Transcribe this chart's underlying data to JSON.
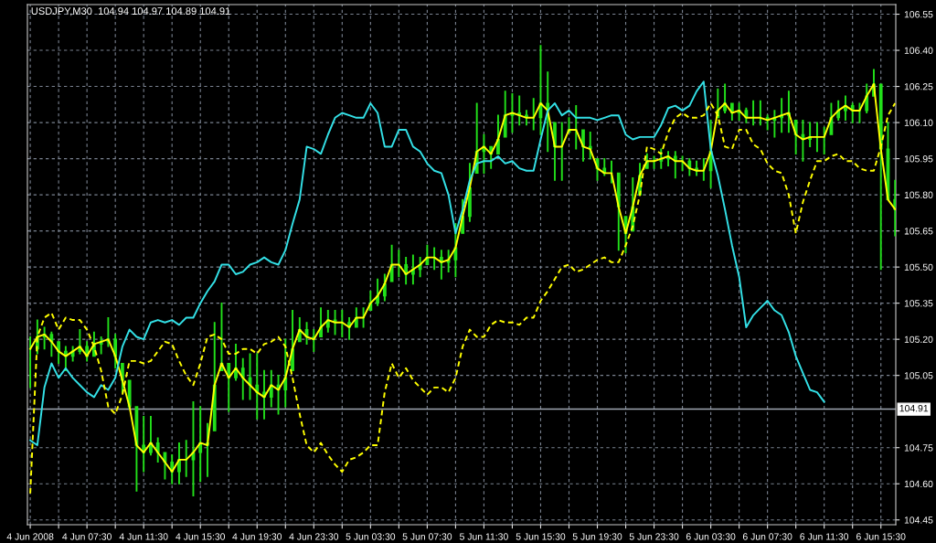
{
  "chart_data": {
    "type": "candlestick",
    "title": "USDJPY,M30  104.94 104.97 104.89 104.91",
    "color": "#22e01a",
    "grid": true,
    "x": [
      "2008-06-04T03:30",
      "2008-06-04T04:00",
      "2008-06-04T04:30",
      "2008-06-04T05:00",
      "2008-06-04T05:30",
      "2008-06-04T06:00",
      "2008-06-04T06:30",
      "2008-06-04T07:00",
      "2008-06-04T07:30",
      "2008-06-04T08:00",
      "2008-06-04T08:30",
      "2008-06-04T09:00",
      "2008-06-04T09:30",
      "2008-06-04T10:00",
      "2008-06-04T10:30",
      "2008-06-04T11:00",
      "2008-06-04T11:30",
      "2008-06-04T12:00",
      "2008-06-04T12:30",
      "2008-06-04T13:00",
      "2008-06-04T13:30",
      "2008-06-04T14:00",
      "2008-06-04T14:30",
      "2008-06-04T15:00",
      "2008-06-04T15:30",
      "2008-06-04T16:00",
      "2008-06-04T16:30",
      "2008-06-04T17:00",
      "2008-06-04T17:30",
      "2008-06-04T18:00",
      "2008-06-04T18:30",
      "2008-06-04T19:00",
      "2008-06-04T19:30",
      "2008-06-04T20:00",
      "2008-06-04T20:30",
      "2008-06-04T21:00",
      "2008-06-04T21:30",
      "2008-06-04T22:00",
      "2008-06-04T22:30",
      "2008-06-04T23:00",
      "2008-06-04T23:30",
      "2008-06-05T00:00",
      "2008-06-05T00:30",
      "2008-06-05T01:00",
      "2008-06-05T01:30",
      "2008-06-05T02:00",
      "2008-06-05T02:30",
      "2008-06-05T03:00",
      "2008-06-05T03:30",
      "2008-06-05T04:00",
      "2008-06-05T04:30",
      "2008-06-05T05:00",
      "2008-06-05T05:30",
      "2008-06-05T06:00",
      "2008-06-05T06:30",
      "2008-06-05T07:00",
      "2008-06-05T07:30",
      "2008-06-05T08:00",
      "2008-06-05T08:30",
      "2008-06-05T09:00",
      "2008-06-05T09:30",
      "2008-06-05T10:00",
      "2008-06-05T10:30",
      "2008-06-05T11:00",
      "2008-06-05T11:30",
      "2008-06-05T12:00",
      "2008-06-05T12:30",
      "2008-06-05T13:00",
      "2008-06-05T13:30",
      "2008-06-05T14:00",
      "2008-06-05T14:30",
      "2008-06-05T15:00",
      "2008-06-05T15:30",
      "2008-06-05T16:00",
      "2008-06-05T16:30",
      "2008-06-05T17:00",
      "2008-06-05T17:30",
      "2008-06-05T18:00",
      "2008-06-05T18:30",
      "2008-06-05T19:00",
      "2008-06-05T19:30",
      "2008-06-05T20:00",
      "2008-06-05T20:30",
      "2008-06-05T21:00",
      "2008-06-05T21:30",
      "2008-06-05T22:00",
      "2008-06-05T22:30",
      "2008-06-05T23:00",
      "2008-06-05T23:30",
      "2008-06-06T00:00",
      "2008-06-06T00:30",
      "2008-06-06T01:00",
      "2008-06-06T01:30",
      "2008-06-06T02:00",
      "2008-06-06T02:30",
      "2008-06-06T03:00",
      "2008-06-06T03:30",
      "2008-06-06T04:00",
      "2008-06-06T04:30",
      "2008-06-06T05:00",
      "2008-06-06T05:30",
      "2008-06-06T06:00",
      "2008-06-06T06:30",
      "2008-06-06T07:00",
      "2008-06-06T07:30",
      "2008-06-06T08:00",
      "2008-06-06T08:30",
      "2008-06-06T09:00",
      "2008-06-06T09:30",
      "2008-06-06T10:00",
      "2008-06-06T10:30",
      "2008-06-06T11:00",
      "2008-06-06T11:30",
      "2008-06-06T12:00",
      "2008-06-06T12:30",
      "2008-06-06T13:00",
      "2008-06-06T13:30",
      "2008-06-06T14:00",
      "2008-06-06T14:30",
      "2008-06-06T15:00",
      "2008-06-06T15:30",
      "2008-06-06T16:00",
      "2008-06-06T16:30"
    ],
    "xlim": [
      "2008-06-04T03:18",
      "2008-06-06T16:33"
    ],
    "ylim": [
      104.43,
      106.59
    ],
    "xticks": [
      {
        "value": "2008-06-04T03:30",
        "label": "4 Jun 2008"
      },
      {
        "value": "2008-06-04T05:30",
        "label": null
      },
      {
        "value": "2008-06-04T07:30",
        "label": "4 Jun 07:30"
      },
      {
        "value": "2008-06-04T09:30",
        "label": null
      },
      {
        "value": "2008-06-04T11:30",
        "label": "4 Jun 11:30"
      },
      {
        "value": "2008-06-04T13:30",
        "label": null
      },
      {
        "value": "2008-06-04T15:30",
        "label": "4 Jun 15:30"
      },
      {
        "value": "2008-06-04T17:30",
        "label": null
      },
      {
        "value": "2008-06-04T19:30",
        "label": "4 Jun 19:30"
      },
      {
        "value": "2008-06-04T21:30",
        "label": null
      },
      {
        "value": "2008-06-04T23:30",
        "label": "4 Jun 23:30"
      },
      {
        "value": "2008-06-05T01:30",
        "label": null
      },
      {
        "value": "2008-06-05T03:30",
        "label": "5 Jun 03:30"
      },
      {
        "value": "2008-06-05T05:30",
        "label": null
      },
      {
        "value": "2008-06-05T07:30",
        "label": "5 Jun 07:30"
      },
      {
        "value": "2008-06-05T09:30",
        "label": null
      },
      {
        "value": "2008-06-05T11:30",
        "label": "5 Jun 11:30"
      },
      {
        "value": "2008-06-05T13:30",
        "label": null
      },
      {
        "value": "2008-06-05T15:30",
        "label": "5 Jun 15:30"
      },
      {
        "value": "2008-06-05T17:30",
        "label": null
      },
      {
        "value": "2008-06-05T19:30",
        "label": "5 Jun 19:30"
      },
      {
        "value": "2008-06-05T21:30",
        "label": null
      },
      {
        "value": "2008-06-05T23:30",
        "label": "5 Jun 23:30"
      },
      {
        "value": "2008-06-06T01:30",
        "label": null
      },
      {
        "value": "2008-06-06T03:30",
        "label": "6 Jun 03:30"
      },
      {
        "value": "2008-06-06T05:30",
        "label": null
      },
      {
        "value": "2008-06-06T07:30",
        "label": "6 Jun 07:30"
      },
      {
        "value": "2008-06-06T09:30",
        "label": null
      },
      {
        "value": "2008-06-06T11:30",
        "label": "6 Jun 11:30"
      },
      {
        "value": "2008-06-06T13:30",
        "label": null
      },
      {
        "value": "2008-06-06T15:30",
        "label": "6 Jun 15:30"
      }
    ],
    "yticks": [
      {
        "value": 104.45,
        "label": "104.45"
      },
      {
        "value": 104.6,
        "label": "104.60"
      },
      {
        "value": 104.75,
        "label": "104.75"
      },
      {
        "value": 105.05,
        "label": "105.05"
      },
      {
        "value": 105.2,
        "label": "105.20"
      },
      {
        "value": 105.35,
        "label": "105.35"
      },
      {
        "value": 105.5,
        "label": "105.50"
      },
      {
        "value": 105.65,
        "label": "105.65"
      },
      {
        "value": 105.8,
        "label": "105.80"
      },
      {
        "value": 105.95,
        "label": "105.95"
      },
      {
        "value": 106.1,
        "label": "106.10"
      },
      {
        "value": 106.25,
        "label": "106.25"
      },
      {
        "value": 106.4,
        "label": "106.40"
      },
      {
        "value": 106.55,
        "label": "106.55"
      }
    ],
    "ref_lines": [
      {
        "axis": "y",
        "value": 104.91,
        "label": "104.91",
        "color": "#a0a8b4"
      }
    ],
    "ohlc": [
      [
        105.16,
        105.21,
        105.0,
        105.16
      ],
      [
        105.16,
        105.28,
        105.14,
        105.21
      ],
      [
        105.21,
        105.25,
        105.16,
        105.22
      ],
      [
        105.22,
        105.23,
        105.13,
        105.19
      ],
      [
        105.19,
        105.19,
        105.1,
        105.15
      ],
      [
        105.15,
        105.17,
        105.07,
        105.13
      ],
      [
        105.13,
        105.17,
        105.11,
        105.15
      ],
      [
        105.15,
        105.24,
        105.14,
        105.17
      ],
      [
        105.17,
        105.19,
        105.11,
        105.13
      ],
      [
        105.13,
        105.23,
        105.13,
        105.18
      ],
      [
        105.18,
        105.21,
        105.14,
        105.19
      ],
      [
        105.19,
        105.29,
        105.17,
        105.2
      ],
      [
        105.2,
        105.22,
        105.08,
        105.13
      ],
      [
        105.1,
        105.1,
        104.98,
        105.03
      ],
      [
        105.03,
        105.03,
        104.91,
        104.92
      ],
      [
        104.92,
        104.92,
        104.57,
        104.76
      ],
      [
        104.76,
        104.88,
        104.65,
        104.73
      ],
      [
        104.73,
        104.88,
        104.72,
        104.77
      ],
      [
        104.77,
        104.79,
        104.69,
        104.73
      ],
      [
        104.73,
        104.73,
        104.62,
        104.69
      ],
      [
        104.69,
        104.72,
        104.6,
        104.65
      ],
      [
        104.65,
        104.77,
        104.6,
        104.7
      ],
      [
        104.7,
        104.78,
        104.63,
        104.7
      ],
      [
        104.7,
        104.94,
        104.55,
        104.73
      ],
      [
        104.73,
        104.92,
        104.61,
        104.77
      ],
      [
        104.77,
        104.85,
        104.63,
        104.76
      ],
      [
        104.82,
        105.27,
        104.82,
        105.01
      ],
      [
        105.07,
        105.35,
        105.07,
        105.1
      ],
      [
        105.1,
        105.1,
        104.9,
        105.04
      ],
      [
        105.04,
        105.18,
        105.03,
        105.08
      ],
      [
        105.08,
        105.12,
        104.95,
        105.04
      ],
      [
        105.04,
        105.14,
        104.95,
        105.01
      ],
      [
        105.01,
        105.14,
        104.87,
        104.98
      ],
      [
        104.98,
        105.07,
        104.87,
        104.96
      ],
      [
        104.96,
        105.07,
        104.92,
        105.01
      ],
      [
        105.01,
        105.05,
        104.89,
        104.99
      ],
      [
        104.99,
        105.2,
        104.92,
        105.04
      ],
      [
        105.07,
        105.32,
        105.07,
        105.16
      ],
      [
        105.19,
        105.29,
        105.19,
        105.24
      ],
      [
        105.24,
        105.27,
        105.18,
        105.21
      ],
      [
        105.21,
        105.24,
        105.15,
        105.2
      ],
      [
        105.21,
        105.33,
        105.21,
        105.25
      ],
      [
        105.25,
        105.32,
        105.23,
        105.28
      ],
      [
        105.28,
        105.32,
        105.22,
        105.27
      ],
      [
        105.27,
        105.32,
        105.21,
        105.27
      ],
      [
        105.27,
        105.29,
        105.2,
        105.25
      ],
      [
        105.25,
        105.33,
        105.25,
        105.29
      ],
      [
        105.29,
        105.33,
        105.25,
        105.29
      ],
      [
        105.32,
        105.4,
        105.32,
        105.35
      ],
      [
        105.35,
        105.45,
        105.34,
        105.38
      ],
      [
        105.38,
        105.47,
        105.36,
        105.43
      ],
      [
        105.44,
        105.59,
        105.44,
        105.51
      ],
      [
        105.51,
        105.57,
        105.46,
        105.51
      ],
      [
        105.51,
        105.54,
        105.43,
        105.47
      ],
      [
        105.47,
        105.55,
        105.43,
        105.49
      ],
      [
        105.49,
        105.54,
        105.46,
        105.51
      ],
      [
        105.51,
        105.59,
        105.51,
        105.54
      ],
      [
        105.54,
        105.58,
        105.49,
        105.54
      ],
      [
        105.54,
        105.57,
        105.45,
        105.52
      ],
      [
        105.52,
        105.57,
        105.48,
        105.53
      ],
      [
        105.53,
        105.68,
        105.46,
        105.58
      ],
      [
        105.64,
        105.78,
        105.64,
        105.71
      ],
      [
        105.71,
        105.93,
        105.69,
        105.83
      ],
      [
        105.89,
        106.18,
        105.89,
        105.98
      ],
      [
        105.98,
        106.05,
        105.89,
        106.0
      ],
      [
        106.0,
        106.0,
        105.91,
        105.97
      ],
      [
        105.97,
        106.13,
        105.97,
        106.03
      ],
      [
        106.04,
        106.23,
        106.04,
        106.13
      ],
      [
        106.13,
        106.22,
        106.06,
        106.14
      ],
      [
        106.14,
        106.21,
        106.09,
        106.13
      ],
      [
        106.13,
        106.15,
        106.09,
        106.12
      ],
      [
        106.12,
        106.2,
        106.07,
        106.12
      ],
      [
        106.12,
        106.42,
        106.05,
        106.18
      ],
      [
        106.18,
        106.31,
        105.98,
        106.15
      ],
      [
        106.1,
        106.1,
        105.86,
        106.0
      ],
      [
        106.0,
        106.1,
        105.86,
        106.0
      ],
      [
        106.06,
        106.12,
        106.06,
        106.07
      ],
      [
        106.07,
        106.17,
        105.99,
        106.07
      ],
      [
        106.07,
        106.07,
        105.94,
        106.0
      ],
      [
        106.0,
        106.06,
        105.95,
        105.99
      ],
      [
        105.95,
        105.95,
        105.86,
        105.91
      ],
      [
        105.91,
        105.95,
        105.88,
        105.89
      ],
      [
        105.89,
        105.94,
        105.85,
        105.89
      ],
      [
        105.89,
        105.89,
        105.57,
        105.75
      ],
      [
        105.71,
        105.71,
        105.56,
        105.64
      ],
      [
        105.65,
        105.87,
        105.65,
        105.75
      ],
      [
        105.8,
        105.93,
        105.8,
        105.88
      ],
      [
        105.91,
        105.97,
        105.91,
        105.94
      ],
      [
        105.94,
        105.96,
        105.91,
        105.94
      ],
      [
        105.94,
        105.99,
        105.91,
        105.95
      ],
      [
        105.95,
        105.98,
        105.92,
        105.96
      ],
      [
        105.96,
        105.98,
        105.87,
        105.94
      ],
      [
        105.94,
        105.96,
        105.9,
        105.94
      ],
      [
        105.94,
        105.95,
        105.88,
        105.91
      ],
      [
        105.91,
        105.94,
        105.88,
        105.9
      ],
      [
        105.9,
        105.95,
        105.86,
        105.9
      ],
      [
        105.9,
        106.11,
        105.83,
        105.98
      ],
      [
        106.12,
        106.24,
        106.12,
        106.15
      ],
      [
        106.15,
        106.26,
        106.14,
        106.18
      ],
      [
        106.18,
        106.18,
        106.11,
        106.14
      ],
      [
        106.14,
        106.18,
        106.11,
        106.15
      ],
      [
        106.15,
        106.16,
        106.1,
        106.12
      ],
      [
        106.12,
        106.19,
        106.09,
        106.12
      ],
      [
        106.12,
        106.19,
        106.09,
        106.12
      ],
      [
        106.12,
        106.13,
        106.07,
        106.11
      ],
      [
        106.11,
        106.15,
        106.04,
        106.12
      ],
      [
        106.12,
        106.2,
        106.06,
        106.13
      ],
      [
        106.13,
        106.23,
        106.06,
        106.14
      ],
      [
        106.11,
        106.11,
        105.97,
        106.05
      ],
      [
        106.05,
        106.11,
        105.94,
        106.03
      ],
      [
        106.03,
        106.1,
        106.0,
        106.04
      ],
      [
        106.04,
        106.1,
        105.98,
        106.04
      ],
      [
        106.04,
        106.08,
        105.97,
        106.04
      ],
      [
        106.05,
        106.18,
        106.05,
        106.12
      ],
      [
        106.12,
        106.19,
        106.11,
        106.15
      ],
      [
        106.15,
        106.21,
        106.11,
        106.17
      ],
      [
        106.17,
        106.18,
        106.1,
        106.15
      ],
      [
        106.15,
        106.18,
        106.1,
        106.15
      ],
      [
        106.15,
        106.26,
        106.14,
        106.21
      ],
      [
        106.21,
        106.32,
        106.21,
        106.26
      ],
      [
        106.26,
        106.26,
        105.49,
        105.99
      ],
      [
        105.99,
        106.1,
        105.78,
        105.78
      ],
      [
        105.78,
        105.86,
        105.63,
        105.74
      ]
    ],
    "series": [
      {
        "type": "line",
        "color": "#ffff00",
        "line_style": "solid",
        "values": [
          105.16,
          105.21,
          105.22,
          105.19,
          105.15,
          105.13,
          105.15,
          105.17,
          105.13,
          105.18,
          105.19,
          105.2,
          105.13,
          105.03,
          104.92,
          104.76,
          104.73,
          104.77,
          104.73,
          104.69,
          104.65,
          104.7,
          104.7,
          104.73,
          104.77,
          104.76,
          105.01,
          105.1,
          105.04,
          105.08,
          105.04,
          105.01,
          104.98,
          104.96,
          105.01,
          104.99,
          105.04,
          105.16,
          105.24,
          105.21,
          105.2,
          105.25,
          105.28,
          105.27,
          105.27,
          105.25,
          105.29,
          105.29,
          105.35,
          105.38,
          105.43,
          105.51,
          105.51,
          105.47,
          105.49,
          105.51,
          105.54,
          105.54,
          105.52,
          105.53,
          105.58,
          105.71,
          105.83,
          105.98,
          106.0,
          105.97,
          106.03,
          106.13,
          106.14,
          106.13,
          106.12,
          106.12,
          106.18,
          106.15,
          106.0,
          106.0,
          106.07,
          106.07,
          106.0,
          105.99,
          105.91,
          105.89,
          105.89,
          105.75,
          105.64,
          105.75,
          105.88,
          105.94,
          105.94,
          105.95,
          105.96,
          105.94,
          105.94,
          105.91,
          105.9,
          105.9,
          105.98,
          106.15,
          106.18,
          106.14,
          106.15,
          106.12,
          106.12,
          106.12,
          106.11,
          106.12,
          106.13,
          106.14,
          106.05,
          106.03,
          106.04,
          106.04,
          106.04,
          106.12,
          106.15,
          106.17,
          106.15,
          106.15,
          106.21,
          106.26,
          105.99,
          105.78,
          105.74
        ]
      },
      {
        "type": "line",
        "color": "#33e0e6",
        "line_style": "solid",
        "values": [
          104.78,
          104.76,
          105.0,
          105.1,
          105.04,
          105.08,
          105.04,
          105.01,
          104.98,
          104.96,
          105.01,
          104.99,
          105.04,
          105.17,
          105.24,
          105.21,
          105.2,
          105.27,
          105.28,
          105.27,
          105.28,
          105.26,
          105.29,
          105.29,
          105.35,
          105.4,
          105.44,
          105.51,
          105.51,
          105.47,
          105.48,
          105.51,
          105.52,
          105.54,
          105.52,
          105.51,
          105.57,
          105.68,
          105.78,
          106.0,
          105.99,
          105.97,
          106.05,
          106.12,
          106.14,
          106.13,
          106.12,
          106.12,
          106.18,
          106.14,
          106.0,
          106.0,
          106.07,
          106.07,
          106.0,
          105.98,
          105.93,
          105.9,
          105.89,
          105.8,
          105.64,
          105.74,
          105.86,
          105.93,
          105.94,
          105.94,
          105.96,
          105.93,
          105.94,
          105.91,
          105.9,
          105.9,
          106.03,
          106.15,
          106.18,
          106.13,
          106.15,
          106.12,
          106.12,
          106.12,
          106.11,
          106.12,
          106.13,
          106.13,
          106.05,
          106.03,
          106.04,
          106.04,
          106.04,
          106.09,
          106.16,
          106.17,
          106.15,
          106.17,
          106.23,
          106.27,
          105.99,
          105.88,
          105.74,
          105.59,
          105.46,
          105.25,
          105.3,
          105.33,
          105.36,
          105.32,
          105.3,
          105.23,
          105.13,
          105.06,
          104.99,
          104.98,
          104.94,
          null,
          null,
          null,
          null,
          null,
          null,
          null,
          null,
          null,
          null
        ]
      },
      {
        "type": "line",
        "color": "#ffff00",
        "line_style": "dashed",
        "values": [
          104.56,
          105.21,
          105.29,
          105.31,
          105.24,
          105.29,
          105.28,
          105.28,
          105.24,
          105.17,
          105.07,
          104.92,
          104.89,
          104.97,
          105.11,
          105.11,
          105.1,
          105.11,
          105.15,
          105.19,
          105.18,
          105.11,
          105.05,
          105.01,
          105.1,
          105.21,
          105.22,
          105.2,
          105.14,
          105.14,
          105.16,
          105.16,
          105.14,
          105.18,
          105.19,
          105.21,
          105.17,
          105.04,
          104.89,
          104.76,
          104.73,
          104.77,
          104.72,
          104.68,
          104.65,
          104.7,
          104.71,
          104.73,
          104.76,
          104.76,
          104.98,
          105.1,
          105.04,
          105.08,
          105.03,
          105.0,
          104.97,
          105.0,
          105.0,
          104.98,
          105.04,
          105.17,
          105.24,
          105.21,
          105.21,
          105.26,
          105.28,
          105.27,
          105.27,
          105.26,
          105.29,
          105.29,
          105.36,
          105.4,
          105.45,
          105.5,
          105.51,
          105.48,
          105.49,
          105.51,
          105.53,
          105.54,
          105.52,
          105.52,
          105.59,
          105.67,
          105.8,
          106.0,
          105.99,
          105.97,
          106.06,
          106.12,
          106.14,
          106.12,
          106.12,
          106.13,
          106.18,
          106.13,
          106.0,
          105.99,
          106.07,
          106.07,
          106.01,
          105.99,
          105.93,
          105.9,
          105.89,
          105.8,
          105.64,
          105.77,
          105.86,
          105.94,
          105.94,
          105.96,
          105.97,
          105.94,
          105.94,
          105.91,
          105.9,
          105.9,
          106.0,
          106.13,
          106.18
        ]
      }
    ]
  }
}
